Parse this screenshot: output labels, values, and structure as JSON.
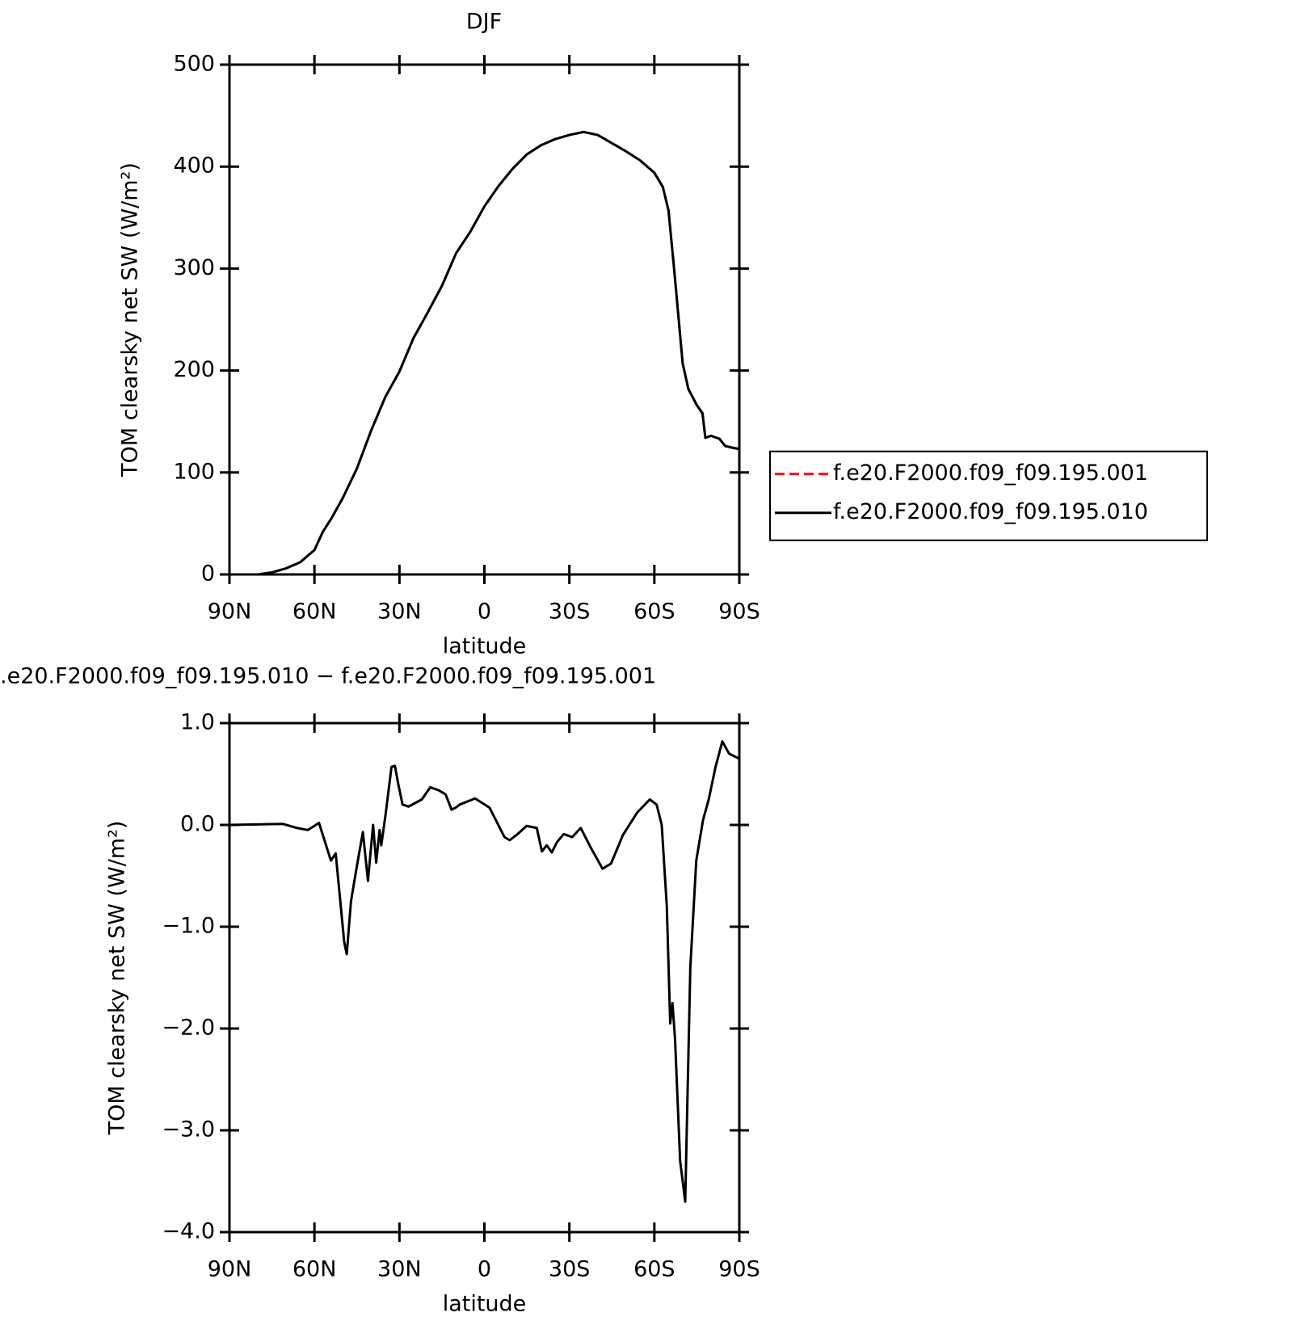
{
  "chart_data": [
    {
      "type": "line",
      "title": "DJF",
      "x_label": "latitude",
      "y_label": "TOM clearsky net SW (W/m²)",
      "xlim": [
        90,
        -90
      ],
      "xticks": [
        {
          "value": 90,
          "label": "90N"
        },
        {
          "value": 60,
          "label": "60N"
        },
        {
          "value": 30,
          "label": "30N"
        },
        0,
        {
          "value": -30,
          "label": "30S"
        },
        {
          "value": -60,
          "label": "60S"
        },
        {
          "value": -90,
          "label": "90S"
        }
      ],
      "ylim": [
        0,
        500
      ],
      "yticks": [
        0,
        100,
        200,
        300,
        400,
        500
      ],
      "legend": "right",
      "x": [
        90,
        80,
        75,
        70,
        65,
        60,
        57,
        54,
        50,
        45,
        40,
        35,
        30,
        25,
        20,
        15,
        10,
        5,
        0,
        -5,
        -10,
        -15,
        -20,
        -25,
        -30,
        -35,
        -40,
        -45,
        -50,
        -55,
        -60,
        -63,
        -65,
        -67,
        -70,
        -72,
        -75,
        -77,
        -78,
        -80,
        -83,
        -85,
        -88,
        -90
      ],
      "series": [
        {
          "name": "f.e20.F2000.f09_f09.195.001",
          "color": "#ff0000",
          "dash": true,
          "values": [
            0,
            0,
            2,
            6,
            12,
            24,
            42,
            55,
            75,
            104,
            141,
            174,
            199,
            232,
            257,
            283,
            315,
            336,
            361,
            381,
            398,
            412,
            421,
            427,
            431,
            434,
            431,
            423,
            415,
            406,
            394,
            380,
            357,
            299,
            207,
            182,
            166,
            158,
            134,
            136,
            133,
            126,
            124,
            123
          ]
        },
        {
          "name": "f.e20.F2000.f09_f09.195.010",
          "color": "#000000",
          "dash": false,
          "values": [
            0,
            0,
            2,
            6,
            12,
            24,
            42,
            55,
            75,
            104,
            141,
            174,
            199,
            232,
            257,
            283,
            315,
            336,
            361,
            381,
            398,
            412,
            421,
            427,
            431,
            434,
            431,
            423,
            415,
            406,
            394,
            380,
            357,
            299,
            207,
            182,
            166,
            158,
            134,
            136,
            133,
            126,
            124,
            123
          ]
        }
      ]
    },
    {
      "type": "line",
      "title": ".e20.F2000.f09_f09.195.010 − f.e20.F2000.f09_f09.195.001",
      "x_label": "latitude",
      "y_label": "TOM clearsky net SW (W/m²)",
      "xlim": [
        90,
        -90
      ],
      "xticks": [
        {
          "value": 90,
          "label": "90N"
        },
        {
          "value": 60,
          "label": "60N"
        },
        {
          "value": 30,
          "label": "30N"
        },
        0,
        {
          "value": -30,
          "label": "30S"
        },
        {
          "value": -60,
          "label": "60S"
        },
        {
          "value": -90,
          "label": "90S"
        }
      ],
      "ylim": [
        -4,
        1
      ],
      "yticks": [
        {
          "value": -4,
          "label": "−4.0"
        },
        {
          "value": -3,
          "label": "−3.0"
        },
        {
          "value": -2,
          "label": "−2.0"
        },
        {
          "value": -1,
          "label": "−1.0"
        },
        {
          "value": 0,
          "label": "0.0"
        },
        {
          "value": 1,
          "label": "1.0"
        }
      ],
      "x": [
        90,
        71.2,
        66.2,
        62.3,
        58.4,
        54.2,
        52.5,
        50.7,
        49.5,
        48.6,
        47.1,
        45.3,
        42.9,
        41.1,
        39.3,
        38.2,
        37,
        36.4,
        34.9,
        32.8,
        31.6,
        30.4,
        28.9,
        26.8,
        22.1,
        19.1,
        16.1,
        13.7,
        11.6,
        10.1,
        8.7,
        3.3,
        -1.8,
        -7.1,
        -8.9,
        -11.3,
        -14.9,
        -18.5,
        -20.3,
        -22,
        -23.8,
        -25.6,
        -28,
        -31,
        -34,
        -37.5,
        -41.7,
        -44.7,
        -48.9,
        -53.9,
        -58.4,
        -60.8,
        -62.6,
        -64.4,
        -65.6,
        -66.4,
        -67.3,
        -69.1,
        -70.9,
        -72.7,
        -74.8,
        -77.2,
        -79.2,
        -81.6,
        -84,
        -86.4,
        -90
      ],
      "series": [
        {
          "color": "#000000",
          "dash": false,
          "values": [
            0,
            0.01,
            -0.03,
            -0.05,
            0.02,
            -0.35,
            -0.28,
            -0.8,
            -1.15,
            -1.27,
            -0.75,
            -0.45,
            -0.07,
            -0.55,
            0,
            -0.37,
            -0.05,
            -0.2,
            0.1,
            0.57,
            0.58,
            0.4,
            0.2,
            0.18,
            0.25,
            0.37,
            0.34,
            0.3,
            0.15,
            0.17,
            0.2,
            0.26,
            0.17,
            -0.12,
            -0.15,
            -0.1,
            -0.01,
            -0.03,
            -0.26,
            -0.2,
            -0.27,
            -0.17,
            -0.09,
            -0.12,
            -0.03,
            -0.22,
            -0.43,
            -0.38,
            -0.1,
            0.12,
            0.25,
            0.2,
            0,
            -0.8,
            -1.95,
            -1.75,
            -2.1,
            -3.3,
            -3.7,
            -1.4,
            -0.35,
            0.05,
            0.25,
            0.57,
            0.82,
            0.7,
            0.65
          ]
        }
      ]
    }
  ]
}
